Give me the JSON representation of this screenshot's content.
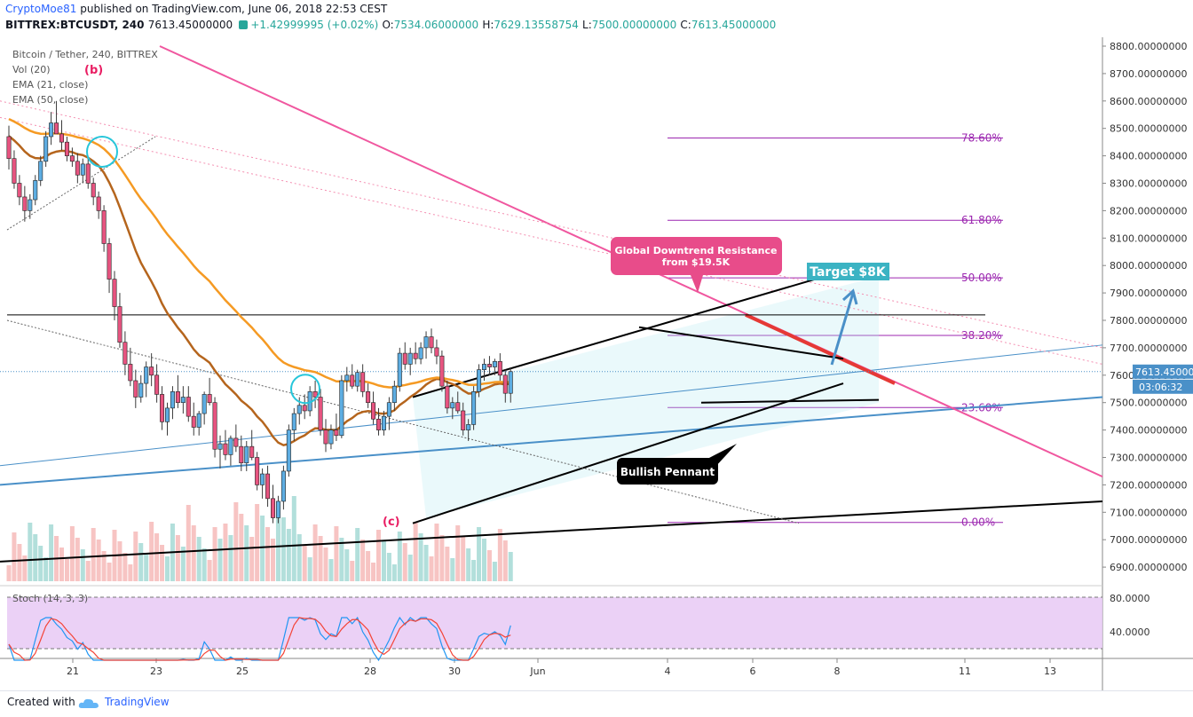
{
  "header": {
    "author": "CryptoMoe81",
    "published_text": "published on TradingView.com, June 06, 2018 22:53 CEST",
    "symbol": "BITTREX:BTCUSDT, 240",
    "last_price": "7613.45000000",
    "change": "+1.42999995 (+0.02%)",
    "open_label": "O:",
    "open": "7534.06000000",
    "high_label": "H:",
    "high": "7629.13558754",
    "low_label": "L:",
    "low": "7500.00000000",
    "close_label": "C:",
    "close": "7613.45000000"
  },
  "legend": {
    "title": "Bitcoin / Tether, 240, BITTREX",
    "vol": "Vol (20)",
    "ema21": "EMA (21, close)",
    "ema50": "EMA (50, close)"
  },
  "annotations": {
    "wave_b": "(b)",
    "wave_c": "(c)",
    "resistance_callout": [
      "Global Downtrend Resistance",
      "from $19.5K"
    ],
    "target": "Target $8K",
    "pennant": "Bullish Pennant"
  },
  "footer": {
    "created_with": "Created with",
    "brand": "TradingView"
  },
  "colors": {
    "up": "#26a69a",
    "down": "#ef5350",
    "ema21": "#b5651d",
    "ema50": "#f59a23",
    "fib": "#9c27b0",
    "resistance": "#f0579f",
    "trendline_blue": "#4a90c8",
    "stoch_bg": "#e8c9f5",
    "callout_pink": "#e84c8a",
    "target_teal": "#3bb3c3"
  },
  "chart_data": {
    "type": "candlestick",
    "y_axis": {
      "min": 6850,
      "max": 8800,
      "ticks": [
        "8800.00000000",
        "8700.00000000",
        "8600.00000000",
        "8500.00000000",
        "8400.00000000",
        "8300.00000000",
        "8200.00000000",
        "8100.00000000",
        "8000.00000000",
        "7900.00000000",
        "7800.00000000",
        "7700.00000000",
        "7600.00000000",
        "7500.00000000",
        "7400.00000000",
        "7300.00000000",
        "7200.00000000",
        "7100.00000000",
        "7000.00000000",
        "6900.00000000"
      ],
      "price_badge": "7613.45000000",
      "timer_badge": "03:06:32"
    },
    "x_axis": {
      "ticks": [
        "21",
        "23",
        "25",
        "28",
        "30",
        "Jun",
        "4",
        "6",
        "8",
        "11",
        "13"
      ]
    },
    "fibonacci": [
      {
        "label": "78.60%",
        "price": 8465
      },
      {
        "label": "61.80%",
        "price": 8165
      },
      {
        "label": "50.00%",
        "price": 7955
      },
      {
        "label": "38.20%",
        "price": 7745
      },
      {
        "label": "23.60%",
        "price": 7482
      },
      {
        "label": "0.00%",
        "price": 7063
      }
    ],
    "candles": [
      [
        8470,
        8510,
        8350,
        8390
      ],
      [
        8390,
        8420,
        8280,
        8300
      ],
      [
        8300,
        8330,
        8220,
        8250
      ],
      [
        8250,
        8290,
        8160,
        8200
      ],
      [
        8200,
        8260,
        8170,
        8240
      ],
      [
        8240,
        8330,
        8220,
        8310
      ],
      [
        8310,
        8400,
        8290,
        8380
      ],
      [
        8380,
        8490,
        8360,
        8470
      ],
      [
        8470,
        8560,
        8440,
        8520
      ],
      [
        8520,
        8600,
        8490,
        8480
      ],
      [
        8480,
        8530,
        8420,
        8450
      ],
      [
        8450,
        8470,
        8380,
        8400
      ],
      [
        8400,
        8430,
        8360,
        8380
      ],
      [
        8380,
        8410,
        8300,
        8330
      ],
      [
        8330,
        8390,
        8300,
        8370
      ],
      [
        8370,
        8390,
        8280,
        8300
      ],
      [
        8300,
        8320,
        8220,
        8250
      ],
      [
        8250,
        8270,
        8170,
        8200
      ],
      [
        8200,
        8220,
        8050,
        8080
      ],
      [
        8080,
        8100,
        7900,
        7950
      ],
      [
        7950,
        7980,
        7800,
        7850
      ],
      [
        7850,
        7900,
        7700,
        7720
      ],
      [
        7720,
        7760,
        7600,
        7640
      ],
      [
        7640,
        7700,
        7560,
        7580
      ],
      [
        7580,
        7620,
        7480,
        7520
      ],
      [
        7520,
        7600,
        7500,
        7570
      ],
      [
        7570,
        7650,
        7520,
        7630
      ],
      [
        7630,
        7680,
        7560,
        7600
      ],
      [
        7600,
        7640,
        7500,
        7530
      ],
      [
        7530,
        7560,
        7400,
        7430
      ],
      [
        7430,
        7500,
        7380,
        7480
      ],
      [
        7480,
        7560,
        7440,
        7540
      ],
      [
        7540,
        7600,
        7480,
        7500
      ],
      [
        7500,
        7560,
        7460,
        7520
      ],
      [
        7520,
        7560,
        7430,
        7450
      ],
      [
        7450,
        7500,
        7380,
        7410
      ],
      [
        7410,
        7470,
        7380,
        7460
      ],
      [
        7460,
        7540,
        7420,
        7530
      ],
      [
        7530,
        7590,
        7490,
        7500
      ],
      [
        7500,
        7520,
        7300,
        7330
      ],
      [
        7330,
        7380,
        7260,
        7350
      ],
      [
        7350,
        7400,
        7290,
        7310
      ],
      [
        7310,
        7380,
        7270,
        7370
      ],
      [
        7370,
        7420,
        7320,
        7340
      ],
      [
        7340,
        7380,
        7250,
        7280
      ],
      [
        7280,
        7360,
        7250,
        7340
      ],
      [
        7340,
        7400,
        7290,
        7300
      ],
      [
        7300,
        7320,
        7180,
        7200
      ],
      [
        7200,
        7260,
        7150,
        7240
      ],
      [
        7240,
        7270,
        7120,
        7150
      ],
      [
        7150,
        7200,
        7060,
        7080
      ],
      [
        7080,
        7160,
        7060,
        7140
      ],
      [
        7140,
        7270,
        7110,
        7250
      ],
      [
        7250,
        7420,
        7230,
        7400
      ],
      [
        7400,
        7480,
        7360,
        7460
      ],
      [
        7460,
        7520,
        7420,
        7490
      ],
      [
        7490,
        7530,
        7440,
        7470
      ],
      [
        7470,
        7560,
        7450,
        7540
      ],
      [
        7540,
        7580,
        7480,
        7520
      ],
      [
        7520,
        7550,
        7380,
        7400
      ],
      [
        7400,
        7440,
        7320,
        7350
      ],
      [
        7350,
        7420,
        7330,
        7400
      ],
      [
        7400,
        7460,
        7360,
        7380
      ],
      [
        7380,
        7600,
        7370,
        7580
      ],
      [
        7580,
        7630,
        7540,
        7600
      ],
      [
        7600,
        7640,
        7550,
        7560
      ],
      [
        7560,
        7620,
        7540,
        7610
      ],
      [
        7610,
        7640,
        7520,
        7540
      ],
      [
        7540,
        7570,
        7480,
        7500
      ],
      [
        7500,
        7540,
        7420,
        7440
      ],
      [
        7440,
        7480,
        7380,
        7400
      ],
      [
        7400,
        7470,
        7380,
        7450
      ],
      [
        7450,
        7520,
        7400,
        7500
      ],
      [
        7500,
        7580,
        7470,
        7560
      ],
      [
        7560,
        7700,
        7540,
        7680
      ],
      [
        7680,
        7720,
        7620,
        7640
      ],
      [
        7640,
        7700,
        7600,
        7680
      ],
      [
        7680,
        7720,
        7640,
        7660
      ],
      [
        7660,
        7720,
        7640,
        7700
      ],
      [
        7700,
        7760,
        7660,
        7740
      ],
      [
        7740,
        7770,
        7680,
        7700
      ],
      [
        7700,
        7730,
        7640,
        7670
      ],
      [
        7670,
        7690,
        7540,
        7560
      ],
      [
        7560,
        7580,
        7460,
        7480
      ],
      [
        7480,
        7520,
        7440,
        7500
      ],
      [
        7500,
        7540,
        7460,
        7470
      ],
      [
        7470,
        7500,
        7380,
        7400
      ],
      [
        7400,
        7440,
        7360,
        7420
      ],
      [
        7420,
        7560,
        7400,
        7540
      ],
      [
        7540,
        7640,
        7520,
        7620
      ],
      [
        7620,
        7660,
        7580,
        7640
      ],
      [
        7640,
        7670,
        7600,
        7630
      ],
      [
        7630,
        7660,
        7600,
        7650
      ],
      [
        7650,
        7680,
        7580,
        7600
      ],
      [
        7600,
        7620,
        7500,
        7534
      ],
      [
        7534,
        7629,
        7500,
        7613
      ]
    ],
    "stochastic": {
      "label": "Stoch (14, 3, 3)",
      "upper": "80.0000",
      "lower": "40.0000"
    }
  }
}
